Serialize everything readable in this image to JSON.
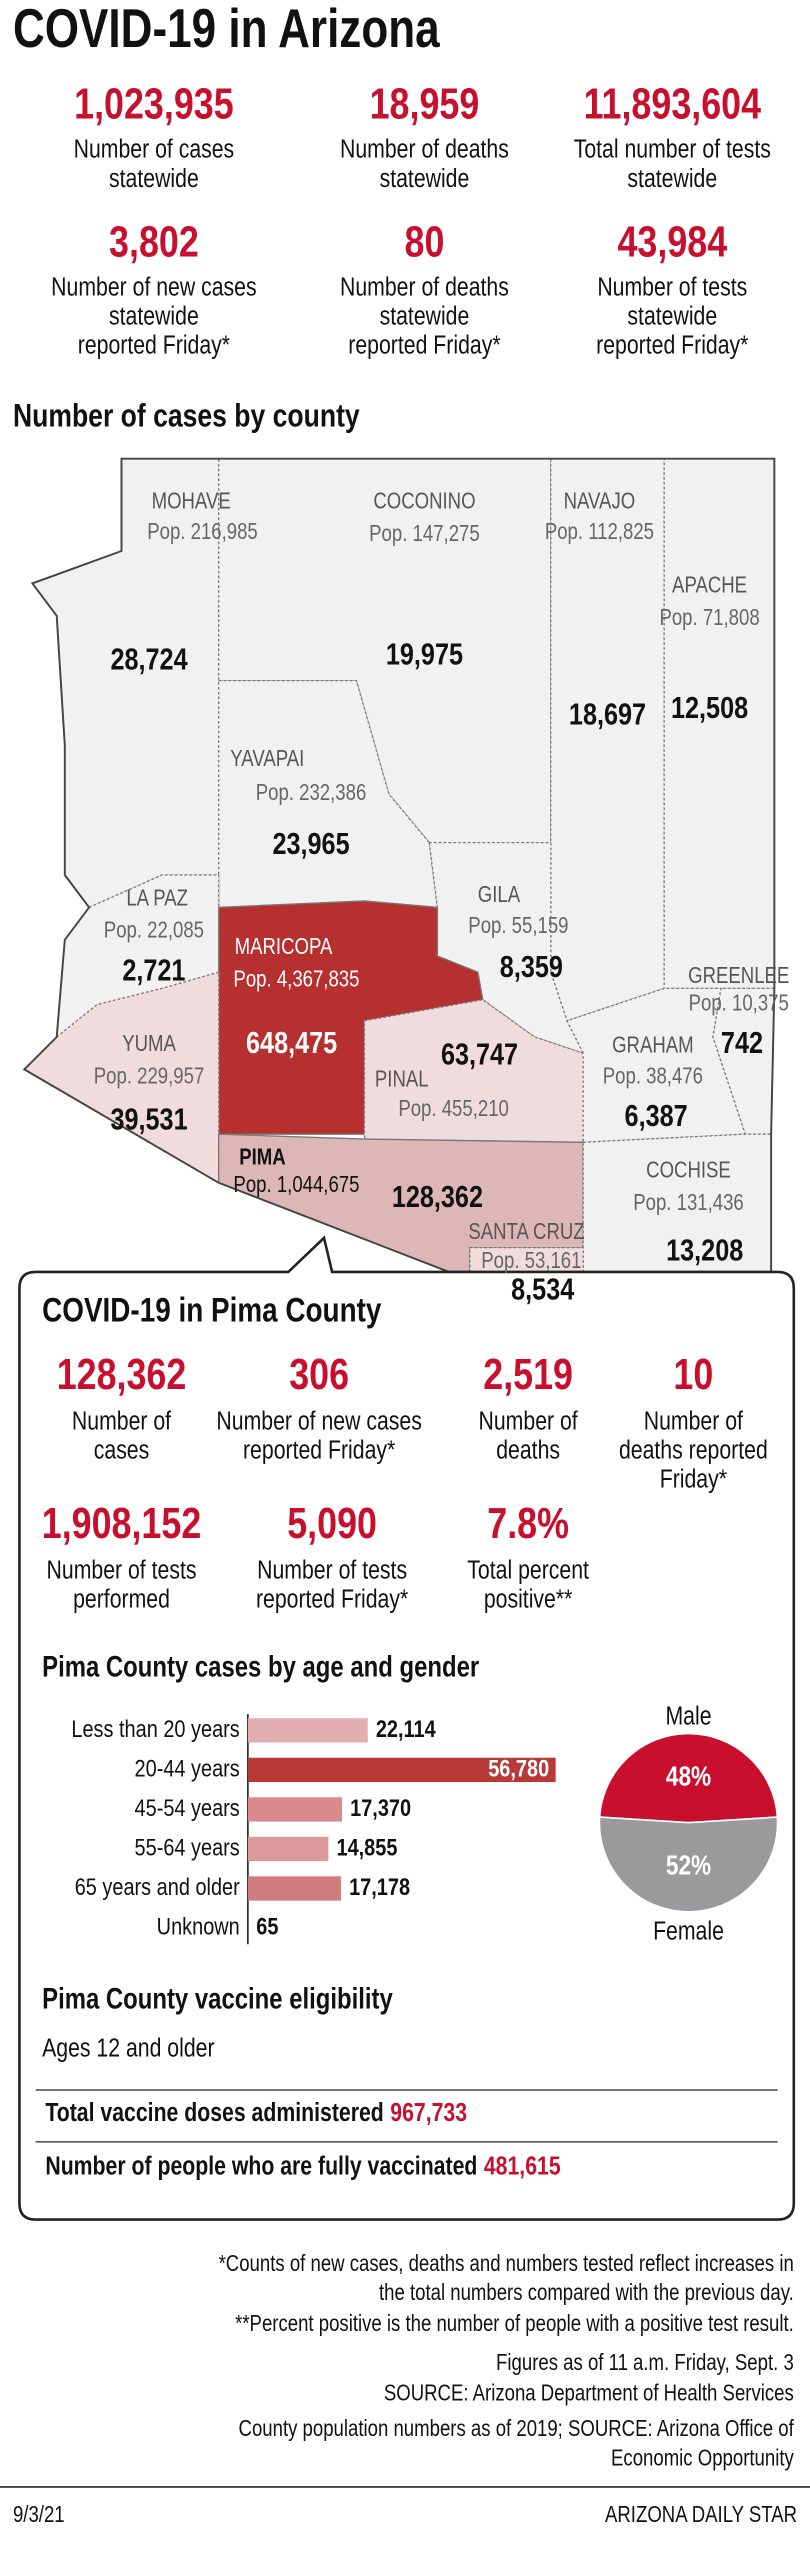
{
  "header": {
    "title": "COVID-19 in Arizona"
  },
  "statewide": [
    {
      "value": "1,023,935",
      "label": [
        "Number of cases",
        "statewide"
      ]
    },
    {
      "value": "18,959",
      "label": [
        "Number of deaths",
        "statewide"
      ]
    },
    {
      "value": "11,893,604",
      "label": [
        "Total number of tests",
        "statewide"
      ]
    },
    {
      "value": "3,802",
      "label": [
        "Number of new cases",
        "statewide",
        "reported Friday*"
      ]
    },
    {
      "value": "80",
      "label": [
        "Number of deaths",
        "statewide",
        "reported Friday*"
      ]
    },
    {
      "value": "43,984",
      "label": [
        "Number of tests",
        "statewide",
        "reported Friday*"
      ]
    }
  ],
  "map": {
    "title": "Number of cases by county",
    "counties": [
      {
        "name": "MOHAVE",
        "pop": "Pop. 216,985",
        "cases": "28,724"
      },
      {
        "name": "COCONINO",
        "pop": "Pop. 147,275",
        "cases": "19,975"
      },
      {
        "name": "NAVAJO",
        "pop": "Pop. 112,825",
        "cases": "18,697"
      },
      {
        "name": "APACHE",
        "pop": "Pop. 71,808",
        "cases": "12,508"
      },
      {
        "name": "YAVAPAI",
        "pop": "Pop. 232,386",
        "cases": "23,965"
      },
      {
        "name": "LA PAZ",
        "pop": "Pop. 22,085",
        "cases": "2,721"
      },
      {
        "name": "GILA",
        "pop": "Pop. 55,159",
        "cases": "8,359"
      },
      {
        "name": "GREENLEE",
        "pop": "Pop. 10,375",
        "cases": "742"
      },
      {
        "name": "MARICOPA",
        "pop": "Pop. 4,367,835",
        "cases": "648,475"
      },
      {
        "name": "YUMA",
        "pop": "Pop. 229,957",
        "cases": "39,531"
      },
      {
        "name": "PINAL",
        "pop": "Pop. 455,210",
        "cases": "63,747"
      },
      {
        "name": "GRAHAM",
        "pop": "Pop. 38,476",
        "cases": "6,387"
      },
      {
        "name": "PIMA",
        "pop": "Pop. 1,044,675",
        "cases": "128,362"
      },
      {
        "name": "COCHISE",
        "pop": "Pop. 131,436",
        "cases": "13,208"
      },
      {
        "name": "SANTA CRUZ",
        "pop": "Pop. 53,161",
        "cases": "8,534"
      }
    ]
  },
  "pima": {
    "title": "COVID-19 in Pima County",
    "stats": [
      {
        "value": "128,362",
        "label": [
          "Number of",
          "cases"
        ]
      },
      {
        "value": "306",
        "label": [
          "Number of new cases",
          "reported Friday*"
        ]
      },
      {
        "value": "2,519",
        "label": [
          "Number of",
          "deaths"
        ]
      },
      {
        "value": "10",
        "label": [
          "Number of",
          "deaths reported",
          "Friday*"
        ]
      },
      {
        "value": "1,908,152",
        "label": [
          "Number of tests",
          "performed"
        ]
      },
      {
        "value": "5,090",
        "label": [
          "Number of tests",
          "reported Friday*"
        ]
      },
      {
        "value": "7.8%",
        "label": [
          "Total percent",
          "positive**"
        ]
      }
    ]
  },
  "chart_data": [
    {
      "type": "bar",
      "title": "Pima County cases by age and gender",
      "categories": [
        "Less than 20 years",
        "20-44 years",
        "45-54 years",
        "55-64 years",
        "65 years and older",
        "Unknown"
      ],
      "values": [
        22114,
        56780,
        17370,
        14855,
        17178,
        65
      ],
      "value_labels": [
        "22,114",
        "56,780",
        "17,370",
        "14,855",
        "17,178",
        "65"
      ],
      "colors": [
        "#e3aeb0",
        "#b83a38",
        "#d88a8c",
        "#dc999b",
        "#d07c7f",
        "#222222"
      ]
    },
    {
      "type": "pie",
      "categories": [
        "Male",
        "Female"
      ],
      "values": [
        48,
        52
      ],
      "value_labels": [
        "48%",
        "52%"
      ],
      "colors": [
        "#c8102e",
        "#9a9a9c"
      ]
    }
  ],
  "vaccine": {
    "title": "Pima County vaccine eligibility",
    "eligibility": "Ages 12 and older",
    "rows": [
      {
        "label": "Total vaccine doses administered",
        "value": "967,733"
      },
      {
        "label": "Number of people who are fully vaccinated",
        "value": "481,615"
      }
    ]
  },
  "footnotes": [
    [
      "*Counts of new cases, deaths and numbers tested reflect increases in",
      "the total numbers compared with the previous day."
    ],
    [
      "**Percent positive is the number of people with a positive test result."
    ],
    [
      "Figures as of 11 a.m. Friday, Sept. 3"
    ],
    [
      "SOURCE: Arizona Department of Health Services"
    ],
    [
      "County population numbers as of 2019; SOURCE: Arizona Office of",
      "Economic Opportunity"
    ]
  ],
  "footer": {
    "date": "9/3/21",
    "source": "ARIZONA DAILY STAR"
  }
}
